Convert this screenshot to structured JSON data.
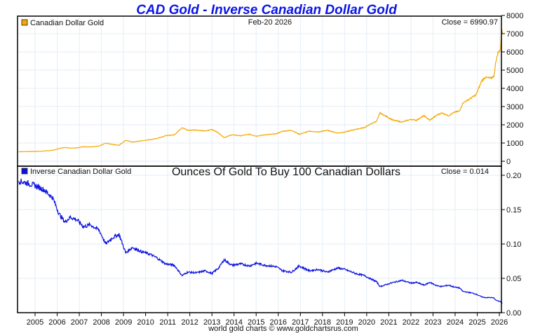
{
  "title": "CAD Gold - Inverse Canadian Dollar Gold",
  "footer": "world gold charts © www.goldchartsrus.com",
  "chart_data": [
    {
      "type": "line",
      "panel": "top",
      "legend": "Canadian Dollar Gold",
      "color": "#f5a800",
      "date_label": "Feb-20  2026",
      "close_label": "Close = 6990.97",
      "ylim": [
        0,
        8000
      ],
      "yticks": [
        0,
        1000,
        2000,
        3000,
        4000,
        5000,
        6000,
        7000,
        8000
      ],
      "ytick_labels": [
        "0",
        "1000",
        "2000",
        "3000",
        "4000",
        "5000",
        "6000",
        "7000",
        "8000"
      ],
      "grid": true,
      "legend_position": "top-left",
      "x": [
        2004.25,
        2004.6,
        2005.0,
        2005.4,
        2005.8,
        2006.1,
        2006.35,
        2006.6,
        2006.9,
        2007.2,
        2007.5,
        2007.9,
        2008.2,
        2008.5,
        2008.8,
        2009.1,
        2009.4,
        2009.8,
        2010.2,
        2010.5,
        2010.9,
        2011.3,
        2011.65,
        2011.9,
        2012.3,
        2012.7,
        2013.0,
        2013.3,
        2013.55,
        2013.9,
        2014.3,
        2014.7,
        2015.0,
        2015.4,
        2015.9,
        2016.2,
        2016.6,
        2016.95,
        2017.4,
        2017.8,
        2018.2,
        2018.7,
        2019.0,
        2019.5,
        2019.9,
        2020.2,
        2020.45,
        2020.6,
        2020.9,
        2021.2,
        2021.6,
        2022.0,
        2022.25,
        2022.6,
        2022.85,
        2023.2,
        2023.4,
        2023.7,
        2024.0,
        2024.2,
        2024.35,
        2024.7,
        2024.95,
        2025.2,
        2025.35,
        2025.6,
        2025.75,
        2025.85,
        2025.95,
        2026.05,
        2026.1,
        2026.14
      ],
      "values": [
        520,
        530,
        540,
        560,
        600,
        700,
        760,
        720,
        740,
        800,
        780,
        830,
        1000,
        920,
        880,
        1150,
        1050,
        1120,
        1180,
        1250,
        1400,
        1450,
        1850,
        1700,
        1720,
        1650,
        1750,
        1550,
        1300,
        1450,
        1400,
        1480,
        1380,
        1450,
        1500,
        1650,
        1700,
        1480,
        1650,
        1600,
        1700,
        1550,
        1600,
        1750,
        1850,
        2050,
        2200,
        2650,
        2450,
        2250,
        2150,
        2300,
        2250,
        2500,
        2250,
        2550,
        2650,
        2500,
        2700,
        2750,
        3200,
        3450,
        3650,
        4400,
        4600,
        4550,
        4650,
        5500,
        6000,
        6100,
        7300,
        6990.97
      ]
    },
    {
      "type": "line",
      "panel": "bottom",
      "legend": "Inverse Canadian Dollar Gold",
      "subtitle": "Ounces Of Gold To Buy 100 Canadian Dollars",
      "color": "#0a10e0",
      "close_label": "Close = 0.014",
      "ylim": [
        0,
        0.2
      ],
      "yticks": [
        0,
        0.05,
        0.1,
        0.15,
        0.2
      ],
      "ytick_labels": [
        "0.00",
        "0.05",
        "0.10",
        "0.15",
        "0.20"
      ],
      "grid": true,
      "legend_position": "top-left",
      "derived_from": "100 / Canadian Dollar Gold",
      "x": [
        2004.25,
        2004.6,
        2005.0,
        2005.4,
        2005.8,
        2006.1,
        2006.35,
        2006.6,
        2006.9,
        2007.2,
        2007.5,
        2007.9,
        2008.2,
        2008.5,
        2008.8,
        2009.1,
        2009.4,
        2009.8,
        2010.2,
        2010.5,
        2010.9,
        2011.3,
        2011.65,
        2011.9,
        2012.3,
        2012.7,
        2013.0,
        2013.3,
        2013.55,
        2013.9,
        2014.3,
        2014.7,
        2015.0,
        2015.4,
        2015.9,
        2016.2,
        2016.6,
        2016.95,
        2017.4,
        2017.8,
        2018.2,
        2018.7,
        2019.0,
        2019.5,
        2019.9,
        2020.2,
        2020.45,
        2020.6,
        2020.9,
        2021.2,
        2021.6,
        2022.0,
        2022.25,
        2022.6,
        2022.85,
        2023.2,
        2023.4,
        2023.7,
        2024.0,
        2024.2,
        2024.35,
        2024.7,
        2024.95,
        2025.2,
        2025.35,
        2025.6,
        2025.75,
        2025.85,
        2025.95,
        2026.05,
        2026.1,
        2026.14
      ],
      "values": [
        0.192,
        0.189,
        0.185,
        0.179,
        0.167,
        0.143,
        0.132,
        0.139,
        0.135,
        0.125,
        0.128,
        0.12,
        0.1,
        0.109,
        0.114,
        0.087,
        0.095,
        0.089,
        0.085,
        0.08,
        0.071,
        0.069,
        0.054,
        0.059,
        0.058,
        0.061,
        0.057,
        0.065,
        0.077,
        0.069,
        0.071,
        0.068,
        0.072,
        0.069,
        0.067,
        0.061,
        0.059,
        0.068,
        0.061,
        0.063,
        0.059,
        0.065,
        0.063,
        0.057,
        0.054,
        0.049,
        0.045,
        0.038,
        0.041,
        0.044,
        0.047,
        0.043,
        0.044,
        0.04,
        0.044,
        0.039,
        0.038,
        0.04,
        0.037,
        0.036,
        0.031,
        0.029,
        0.027,
        0.023,
        0.022,
        0.022,
        0.0215,
        0.018,
        0.017,
        0.0164,
        0.0137,
        0.014
      ]
    }
  ],
  "xaxis": {
    "years": [
      "2005",
      "2006",
      "2007",
      "2008",
      "2009",
      "2010",
      "2011",
      "2012",
      "2013",
      "2014",
      "2015",
      "2016",
      "2017",
      "2018",
      "2019",
      "2020",
      "2021",
      "2022",
      "2023",
      "2024",
      "2025",
      "2026"
    ],
    "xlim": [
      2004.25,
      2026.2
    ]
  }
}
